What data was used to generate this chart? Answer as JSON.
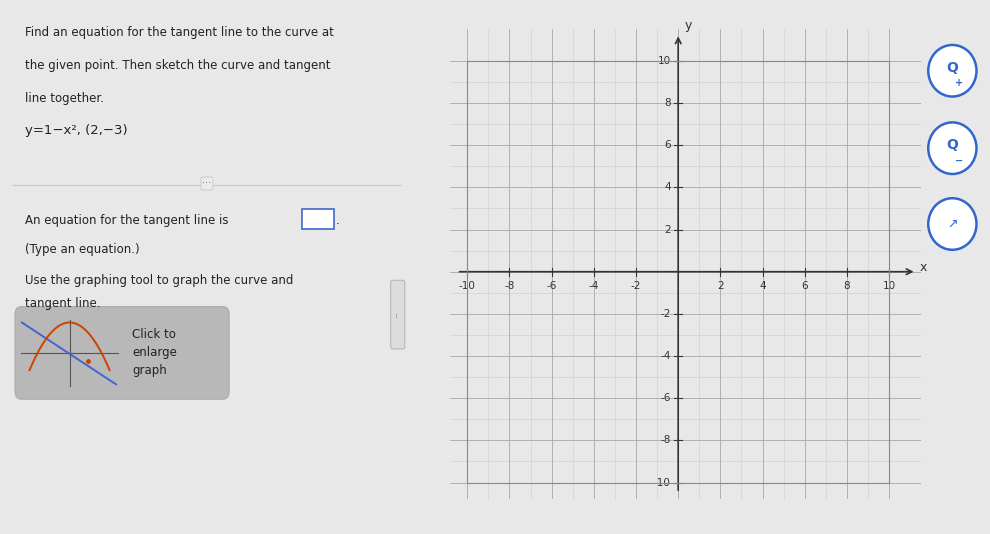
{
  "overall_bg": "#e8e8e8",
  "left_panel_bg": "#f2f2f2",
  "right_area_bg": "#e8e8e8",
  "grid_bg": "#ffffff",
  "problem_lines": [
    "Find an equation for the tangent line to the curve at",
    "the given point. Then sketch the curve and tangent",
    "line together."
  ],
  "equation_text": "y=1−x², (2,−3)",
  "answer_line1": "An equation for the tangent line is",
  "answer_line2": "(Type an equation.)",
  "tool_line1": "Use the graphing tool to graph the curve and",
  "tool_line2": "tangent line.",
  "click_text": "Click to\nenlarge\ngraph",
  "axis_min": -10,
  "axis_max": 10,
  "xlabel": "x",
  "ylabel": "y",
  "grid_color": "#aaaaaa",
  "grid_minor_color": "#cccccc",
  "axis_color": "#333333",
  "tick_label_color": "#333333",
  "text_color": "#222222",
  "thumb_bg": "#b8b8b8",
  "thumb_curve_color": "#cc4400",
  "thumb_line_color": "#4466cc",
  "answer_box_color": "#4466cc",
  "separator_color": "#cccccc",
  "icon_color": "#3366cc",
  "font_size_text": 8.5,
  "font_size_eq": 9.5,
  "font_size_tick": 7.5
}
